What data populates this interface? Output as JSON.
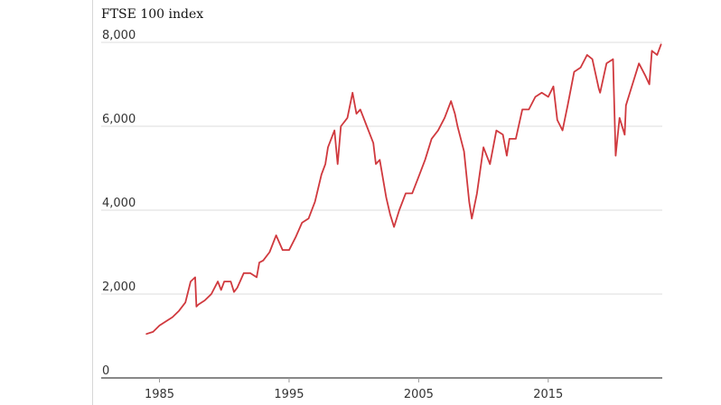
{
  "chart_data": {
    "type": "line",
    "title": "",
    "ylabel": "FTSE 100 index",
    "xlabel": "",
    "xlim": [
      1980.5,
      2023.8
    ],
    "ylim": [
      0,
      8000
    ],
    "yticks": [
      0,
      2000,
      4000,
      6000,
      8000
    ],
    "ytick_labels": [
      "0",
      "2,000",
      "4,000",
      "6,000",
      "8,000"
    ],
    "xticks": [
      1985,
      1995,
      2005,
      2015
    ],
    "xtick_labels": [
      "1985",
      "1995",
      "2005",
      "2015"
    ],
    "grid": true,
    "legend": "none",
    "colors": {
      "line": "#d0393e",
      "grid": "#dcdcdc",
      "axis": "#121212"
    },
    "series": [
      {
        "name": "",
        "x": [
          1984.0,
          1984.5,
          1985.0,
          1985.5,
          1986.0,
          1986.5,
          1987.0,
          1987.4,
          1987.75,
          1987.85,
          1988.0,
          1988.5,
          1989.0,
          1989.5,
          1989.75,
          1990.0,
          1990.5,
          1990.75,
          1991.0,
          1991.5,
          1992.0,
          1992.5,
          1992.7,
          1993.0,
          1993.5,
          1994.0,
          1994.5,
          1995.0,
          1995.5,
          1996.0,
          1996.5,
          1997.0,
          1997.5,
          1997.8,
          1998.0,
          1998.5,
          1998.75,
          1999.0,
          1999.5,
          1999.9,
          2000.2,
          2000.5,
          2001.0,
          2001.5,
          2001.7,
          2002.0,
          2002.5,
          2002.8,
          2003.1,
          2003.5,
          2004.0,
          2004.5,
          2005.0,
          2005.5,
          2006.0,
          2006.5,
          2007.0,
          2007.5,
          2007.8,
          2008.0,
          2008.5,
          2008.9,
          2009.1,
          2009.5,
          2010.0,
          2010.5,
          2011.0,
          2011.5,
          2011.8,
          2012.0,
          2012.5,
          2013.0,
          2013.5,
          2014.0,
          2014.5,
          2015.0,
          2015.4,
          2015.7,
          2016.1,
          2016.5,
          2017.0,
          2017.5,
          2018.0,
          2018.4,
          2018.9,
          2019.0,
          2019.5,
          2020.0,
          2020.2,
          2020.5,
          2020.9,
          2021.0,
          2021.5,
          2022.0,
          2022.5,
          2022.8,
          2023.0,
          2023.4,
          2023.7
        ],
        "values": [
          1050,
          1100,
          1250,
          1350,
          1450,
          1600,
          1800,
          2300,
          2400,
          1700,
          1750,
          1850,
          2000,
          2300,
          2100,
          2300,
          2300,
          2050,
          2150,
          2500,
          2500,
          2400,
          2750,
          2800,
          3000,
          3400,
          3050,
          3050,
          3350,
          3700,
          3800,
          4200,
          4850,
          5100,
          5500,
          5900,
          5100,
          6000,
          6200,
          6800,
          6300,
          6400,
          6000,
          5600,
          5100,
          5200,
          4300,
          3900,
          3600,
          4000,
          4400,
          4400,
          4800,
          5200,
          5700,
          5900,
          6200,
          6600,
          6300,
          6000,
          5400,
          4200,
          3800,
          4400,
          5500,
          5100,
          5900,
          5800,
          5300,
          5700,
          5700,
          6400,
          6400,
          6700,
          6800,
          6700,
          6950,
          6150,
          5900,
          6500,
          7300,
          7400,
          7700,
          7600,
          6900,
          6800,
          7500,
          7600,
          5300,
          6200,
          5800,
          6500,
          7000,
          7500,
          7200,
          7000,
          7800,
          7700,
          7950
        ]
      }
    ]
  }
}
